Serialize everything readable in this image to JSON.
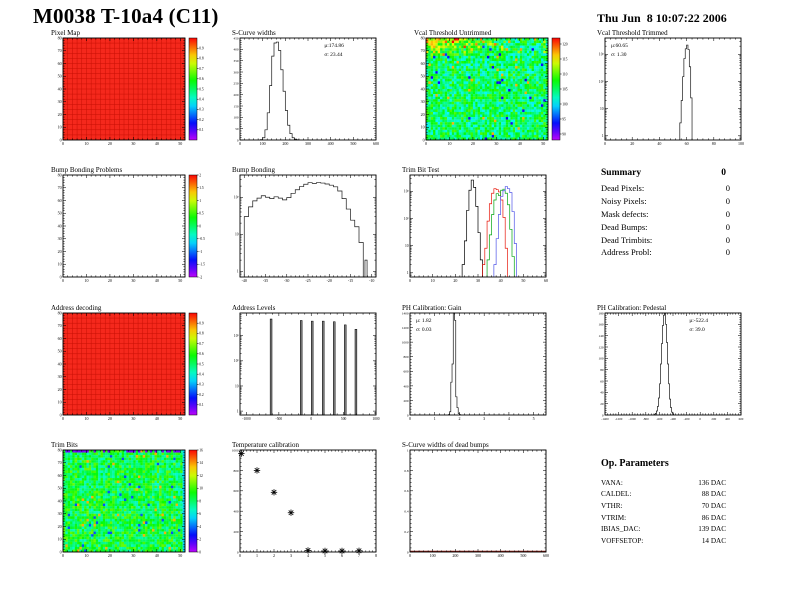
{
  "page": {
    "title": "M0038 T-10a4 (C11)",
    "datetime": "Thu Jun  8 10:07:22 2006"
  },
  "summary": {
    "heading": "Summary",
    "total": "0",
    "rows": [
      [
        "Dead Pixels:",
        "0"
      ],
      [
        "Noisy Pixels:",
        "0"
      ],
      [
        "Mask defects:",
        "0"
      ],
      [
        "Dead Bumps:",
        "0"
      ],
      [
        "Dead Trimbits:",
        "0"
      ],
      [
        "Address Probl:",
        "0"
      ]
    ]
  },
  "op_parameters": {
    "heading": "Op. Parameters",
    "rows": [
      [
        "VANA:",
        "136 DAC"
      ],
      [
        "CALDEL:",
        "88 DAC"
      ],
      [
        "VTHR:",
        "70 DAC"
      ],
      [
        "VTRIM:",
        "86 DAC"
      ],
      [
        "IBIAS_DAC:",
        "139 DAC"
      ],
      [
        "VOFFSETOP:",
        "14 DAC"
      ]
    ]
  },
  "chart_data": [
    {
      "id": "pixel-map",
      "type": "heatmap",
      "fill": "uniform",
      "title": "Pixel Map",
      "xlim": [
        0,
        52
      ],
      "ylim": [
        0,
        80
      ],
      "xticks": [
        0,
        10,
        20,
        30,
        40,
        50
      ],
      "yticks": [
        0,
        10,
        20,
        30,
        40,
        50,
        60,
        70,
        80
      ],
      "uniform_color": "#f5281c",
      "grid_color": "#c81005",
      "colorbar": {
        "range": [
          0,
          1
        ],
        "labels": [
          0.9,
          0.8,
          0.7,
          0.6,
          0.5,
          0.4,
          0.3,
          0.2,
          0.1
        ]
      }
    },
    {
      "id": "scurve-widths",
      "type": "histogram",
      "title": "S-Curve widths",
      "stats": {
        "lines": [
          "μ:174.86",
          "σ: 23.44"
        ],
        "pos": "tr"
      },
      "xlim": [
        0,
        600
      ],
      "xticks": [
        0,
        100,
        200,
        300,
        400,
        500,
        600
      ],
      "ylim": [
        0,
        450
      ],
      "yticks": [
        0,
        50,
        100,
        150,
        200,
        250,
        300,
        350,
        400,
        450
      ],
      "edges": [
        90,
        100,
        110,
        120,
        130,
        140,
        150,
        160,
        170,
        180,
        190,
        200,
        210,
        220,
        230,
        240,
        250,
        260
      ],
      "counts": [
        2,
        10,
        45,
        120,
        240,
        370,
        428,
        432,
        395,
        310,
        215,
        130,
        65,
        28,
        10,
        4,
        1
      ]
    },
    {
      "id": "vcal-threshold-untrimmed",
      "type": "heatmap",
      "fill": "noise",
      "title": "Vcal Threshold Untrimmed",
      "xlim": [
        0,
        52
      ],
      "ylim": [
        0,
        80
      ],
      "xticks": [
        0,
        10,
        20,
        30,
        40,
        50
      ],
      "yticks": [
        0,
        10,
        20,
        30,
        40,
        50,
        60,
        70,
        80
      ],
      "noise": {
        "seed": 20060608,
        "cols": 52,
        "rows": 40,
        "base": 105,
        "spread": 5,
        "range": [
          88,
          122
        ],
        "hot_corner": true
      },
      "colorbar": {
        "range": [
          88,
          122
        ],
        "labels": [
          120,
          115,
          110,
          105,
          100,
          95,
          90
        ]
      }
    },
    {
      "id": "vcal-threshold-trimmed",
      "type": "histogram",
      "log": true,
      "title": "Vcal Threshold Trimmed",
      "stats": {
        "lines": [
          "μ:60.65",
          "σ: 1.30"
        ],
        "pos": "tl"
      },
      "xlim": [
        0,
        100
      ],
      "xticks": [
        0,
        20,
        40,
        60,
        80,
        100
      ],
      "ylim": [
        0.7,
        4000
      ],
      "ylog_labels": [
        "1",
        "10",
        "10²",
        "10³"
      ],
      "edges": [
        55,
        56,
        57,
        58,
        59,
        60,
        61,
        62,
        63,
        64
      ],
      "counts": [
        3,
        20,
        150,
        700,
        1600,
        2200,
        1500,
        350,
        25
      ]
    },
    {
      "id": "bump-bonding-problems",
      "type": "heatmap",
      "fill": "empty",
      "title": "Bump Bonding Problems",
      "xlim": [
        0,
        52
      ],
      "ylim": [
        0,
        80
      ],
      "xticks": [
        0,
        10,
        20,
        30,
        40,
        50
      ],
      "yticks": [
        0,
        10,
        20,
        30,
        40,
        50,
        60,
        70,
        80
      ],
      "colorbar": {
        "range": [
          -2,
          2
        ],
        "labels": [
          2,
          1.5,
          1,
          0.5,
          0,
          -0.5,
          -1,
          -1.5,
          -2
        ]
      }
    },
    {
      "id": "bump-bonding",
      "type": "histogram",
      "log": true,
      "title": "Bump Bonding",
      "xlim": [
        -41,
        -9
      ],
      "xticks": [
        -40,
        -35,
        -30,
        -25,
        -20,
        -15,
        -10
      ],
      "ylim": [
        0.7,
        400
      ],
      "ylog_labels": [
        "1",
        "10",
        "10²"
      ],
      "edges": [
        -40,
        -39,
        -38,
        -37,
        -36,
        -35,
        -34,
        -33,
        -32,
        -31,
        -30,
        -29,
        -28,
        -27,
        -26,
        -25,
        -24,
        -23,
        -22,
        -21,
        -20,
        -19,
        -18,
        -17,
        -16,
        -15,
        -14,
        -13,
        -12,
        -11.6,
        -11.1
      ],
      "counts": [
        30,
        55,
        80,
        95,
        110,
        100,
        92,
        103,
        95,
        85,
        98,
        128,
        160,
        195,
        225,
        248,
        238,
        250,
        242,
        228,
        212,
        192,
        148,
        92,
        48,
        24,
        16,
        6,
        0,
        2
      ]
    },
    {
      "id": "trim-bit-test",
      "type": "multi-histogram",
      "log": true,
      "title": "Trim Bit Test",
      "xlim": [
        0,
        60
      ],
      "xticks": [
        0,
        10,
        20,
        30,
        40,
        50,
        60
      ],
      "ylim": [
        0.7,
        4000
      ],
      "ylog_labels": [
        "1",
        "10",
        "10²",
        "10³"
      ],
      "series": [
        {
          "color": "#000000",
          "edges": [
            23,
            24,
            25,
            26,
            27,
            28,
            29,
            30,
            31,
            32
          ],
          "counts": [
            2,
            15,
            200,
            1100,
            2600,
            1400,
            280,
            30,
            3
          ]
        },
        {
          "color": "#e8170b",
          "edges": [
            32,
            33,
            34,
            35,
            36,
            37,
            38,
            39,
            40,
            41,
            42,
            43
          ],
          "counts": [
            2,
            8,
            80,
            350,
            850,
            1250,
            1150,
            950,
            480,
            110,
            8
          ]
        },
        {
          "color": "#00a510",
          "edges": [
            34,
            35,
            36,
            37,
            38,
            39,
            40,
            41,
            42,
            43,
            44,
            45,
            46
          ],
          "counts": [
            3,
            25,
            140,
            480,
            820,
            700,
            1100,
            1200,
            850,
            320,
            40,
            4
          ]
        },
        {
          "color": "#5055e8",
          "edges": [
            37,
            38,
            39,
            40,
            41,
            42,
            43,
            44,
            45,
            46,
            47
          ],
          "counts": [
            2,
            18,
            140,
            650,
            1050,
            1500,
            1250,
            900,
            180,
            12
          ]
        }
      ]
    },
    {
      "id": "address-decoding",
      "type": "heatmap",
      "fill": "uniform",
      "title": "Address decoding",
      "xlim": [
        0,
        52
      ],
      "ylim": [
        0,
        80
      ],
      "xticks": [
        0,
        10,
        20,
        30,
        40,
        50
      ],
      "yticks": [
        0,
        10,
        20,
        30,
        40,
        50,
        60,
        70,
        80
      ],
      "uniform_color": "#f5281c",
      "grid_color": "#c81005",
      "colorbar": {
        "range": [
          0,
          1
        ],
        "labels": [
          0.9,
          0.8,
          0.7,
          0.6,
          0.5,
          0.4,
          0.3,
          0.2,
          0.1
        ]
      }
    },
    {
      "id": "address-levels",
      "type": "spikes",
      "log": true,
      "title": "Address Levels",
      "xlim": [
        -1100,
        1000
      ],
      "xticks": [
        -1000,
        -500,
        0,
        500,
        1000
      ],
      "xlabel_size": 3.6,
      "ylim": [
        0.7,
        8000
      ],
      "ylog_labels": [
        "1",
        "10",
        "10²",
        "10³"
      ],
      "spikes": [
        [
          -620,
          4600
        ],
        [
          -155,
          4000
        ],
        [
          15,
          3800
        ],
        [
          185,
          3800
        ],
        [
          355,
          3600
        ],
        [
          525,
          2700
        ],
        [
          690,
          1800
        ]
      ],
      "spike_halfwidth": 14
    },
    {
      "id": "ph-calibration-gain",
      "type": "histogram",
      "title": "PH Calibration: Gain",
      "stats": {
        "lines": [
          "μ: 1.82",
          "σ: 0.03"
        ],
        "pos": "tl"
      },
      "xlim": [
        0,
        5.5
      ],
      "xticks": [
        0,
        1,
        2,
        3,
        4,
        5
      ],
      "ylim": [
        0,
        1400
      ],
      "yticks": [
        0,
        200,
        400,
        600,
        800,
        1000,
        1200,
        1400
      ],
      "edges": [
        1.55,
        1.6,
        1.65,
        1.7,
        1.75,
        1.8,
        1.85,
        1.9,
        1.95,
        2.0,
        2.05
      ],
      "counts": [
        5,
        45,
        450,
        700,
        1400,
        1300,
        250,
        100,
        20,
        5
      ]
    },
    {
      "id": "ph-calibration-pedestal",
      "type": "histogram",
      "title": "PH Calibration: Pedestal",
      "stats": {
        "lines": [
          "μ:-522.4",
          "σ: 39.0"
        ],
        "pos": "tr"
      },
      "xlim": [
        -1400,
        600
      ],
      "xticks": [
        -1400,
        -1200,
        -1000,
        -800,
        -600,
        -400,
        -200,
        0,
        200,
        400,
        600
      ],
      "xlabel_size": 3.2,
      "ylim": [
        0,
        180
      ],
      "yticks": [
        0,
        20,
        40,
        60,
        80,
        100,
        120,
        140,
        160,
        180
      ],
      "edges": [
        -675,
        -660,
        -645,
        -630,
        -615,
        -600,
        -585,
        -570,
        -555,
        -540,
        -525,
        -510,
        -495,
        -480,
        -465,
        -450,
        -435,
        -420,
        -405,
        -390
      ],
      "counts": [
        1,
        3,
        7,
        15,
        30,
        55,
        90,
        126,
        158,
        176,
        179,
        160,
        128,
        90,
        55,
        28,
        13,
        5,
        2
      ]
    },
    {
      "id": "trim-bits",
      "type": "heatmap",
      "fill": "noise",
      "title": "Trim Bits",
      "xlim": [
        0,
        52
      ],
      "ylim": [
        0,
        80
      ],
      "xticks": [
        0,
        10,
        20,
        30,
        40,
        50
      ],
      "yticks": [
        0,
        10,
        20,
        30,
        40,
        50,
        60,
        70,
        80
      ],
      "noise": {
        "seed": 4242,
        "cols": 52,
        "rows": 40,
        "base": 8.6,
        "spread": 2.1,
        "range": [
          0,
          16
        ],
        "top_row_blue": true,
        "right_col_cyan": true
      },
      "colorbar": {
        "range": [
          0,
          16
        ],
        "labels": [
          16,
          14,
          12,
          10,
          8,
          6,
          4,
          2,
          0
        ]
      }
    },
    {
      "id": "temperature-calibration",
      "type": "scatter",
      "title": "Temperature calibration",
      "xlim": [
        0,
        8
      ],
      "xticks": [
        0,
        1,
        2,
        3,
        4,
        5,
        6,
        7,
        8
      ],
      "ylim": [
        0,
        1000
      ],
      "yticks": [
        0,
        200,
        400,
        600,
        800,
        1000
      ],
      "points": [
        [
          0.08,
          965
        ],
        [
          1,
          800
        ],
        [
          2,
          585
        ],
        [
          3,
          385
        ],
        [
          4,
          15
        ],
        [
          5,
          10
        ],
        [
          6,
          10
        ],
        [
          7,
          12
        ]
      ]
    },
    {
      "id": "scurve-widths-dead-bumps",
      "type": "empty-hist",
      "title": "S-Curve widths of dead bumps",
      "xlim": [
        0,
        600
      ],
      "xticks": [
        0,
        100,
        200,
        300,
        400,
        500,
        600
      ],
      "ylim": [
        0,
        1
      ],
      "yticks": [
        0,
        0.2,
        0.4,
        0.6,
        0.8,
        1
      ],
      "baseline_color": "#8b1a12"
    }
  ]
}
